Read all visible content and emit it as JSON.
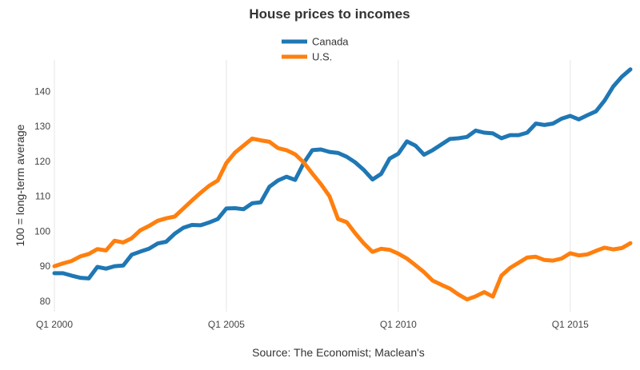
{
  "chart_data": {
    "type": "line",
    "title": "House prices to incomes",
    "ylabel": "100 = long-term average",
    "source": "Source: The Economist; Maclean's",
    "xlim": [
      2000.0,
      2016.75
    ],
    "ylim": [
      77,
      149
    ],
    "yticks": [
      80,
      90,
      100,
      110,
      120,
      130,
      140
    ],
    "xticks": [
      {
        "value": 2000,
        "label": "Q1 2000"
      },
      {
        "value": 2005,
        "label": "Q1 2005"
      },
      {
        "value": 2010,
        "label": "Q1 2010"
      },
      {
        "value": 2015,
        "label": "Q1 2015"
      }
    ],
    "grid": "vertical",
    "legend_position": "top-center",
    "x": [
      2000.0,
      2000.25,
      2000.5,
      2000.75,
      2001.0,
      2001.25,
      2001.5,
      2001.75,
      2002.0,
      2002.25,
      2002.5,
      2002.75,
      2003.0,
      2003.25,
      2003.5,
      2003.75,
      2004.0,
      2004.25,
      2004.5,
      2004.75,
      2005.0,
      2005.25,
      2005.5,
      2005.75,
      2006.0,
      2006.25,
      2006.5,
      2006.75,
      2007.0,
      2007.25,
      2007.5,
      2007.75,
      2008.0,
      2008.25,
      2008.5,
      2008.75,
      2009.0,
      2009.25,
      2009.5,
      2009.75,
      2010.0,
      2010.25,
      2010.5,
      2010.75,
      2011.0,
      2011.25,
      2011.5,
      2011.75,
      2012.0,
      2012.25,
      2012.5,
      2012.75,
      2013.0,
      2013.25,
      2013.5,
      2013.75,
      2014.0,
      2014.25,
      2014.5,
      2014.75,
      2015.0,
      2015.25,
      2015.5,
      2015.75,
      2016.0,
      2016.25,
      2016.5,
      2016.75
    ],
    "series": [
      {
        "name": "Canada",
        "color": "#1f77b4",
        "values": [
          88.0,
          88.0,
          87.3,
          86.7,
          86.5,
          89.8,
          89.3,
          90.0,
          90.2,
          93.3,
          94.2,
          95.0,
          96.5,
          97.0,
          99.3,
          101.0,
          101.8,
          101.7,
          102.5,
          103.5,
          106.5,
          106.6,
          106.3,
          108.0,
          108.3,
          112.7,
          114.5,
          115.6,
          114.7,
          119.5,
          123.2,
          123.4,
          122.7,
          122.4,
          121.3,
          119.7,
          117.5,
          114.8,
          116.4,
          120.8,
          122.2,
          125.7,
          124.5,
          121.9,
          123.2,
          124.8,
          126.4,
          126.6,
          127.0,
          128.8,
          128.2,
          128.0,
          126.6,
          127.5,
          127.5,
          128.2,
          130.8,
          130.4,
          130.8,
          132.2,
          133.0,
          132.0,
          133.2,
          134.3,
          137.4,
          141.4,
          144.2,
          146.3
        ]
      },
      {
        "name": "U.S.",
        "color": "#ff7f0e",
        "values": [
          90.0,
          90.8,
          91.5,
          92.8,
          93.5,
          94.9,
          94.5,
          97.3,
          96.8,
          98.0,
          100.3,
          101.5,
          103.0,
          103.7,
          104.2,
          106.5,
          108.8,
          111.0,
          113.0,
          114.5,
          119.5,
          122.5,
          124.5,
          126.5,
          126.0,
          125.6,
          123.8,
          123.2,
          122.0,
          119.7,
          116.5,
          113.5,
          110.0,
          103.5,
          102.6,
          99.4,
          96.5,
          94.1,
          95.0,
          94.7,
          93.6,
          92.2,
          90.3,
          88.3,
          85.9,
          84.7,
          83.6,
          81.9,
          80.5,
          81.4,
          82.6,
          81.3,
          87.3,
          89.5,
          91.0,
          92.5,
          92.7,
          91.8,
          91.6,
          92.2,
          93.7,
          93.1,
          93.4,
          94.4,
          95.3,
          94.8,
          95.2,
          96.6
        ]
      }
    ]
  }
}
